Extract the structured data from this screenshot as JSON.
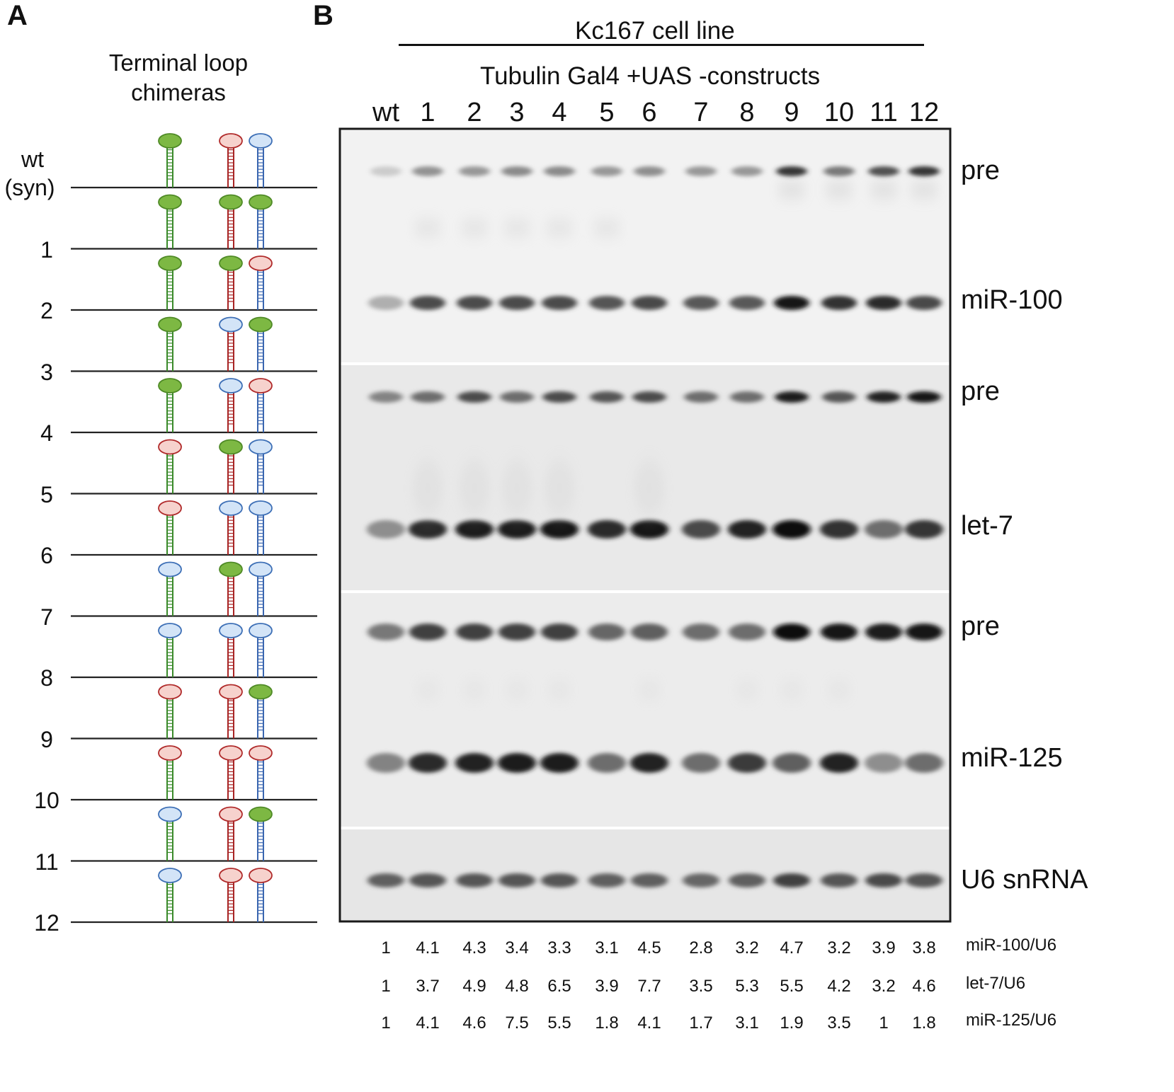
{
  "panels": {
    "a": "A",
    "b": "B"
  },
  "panel_a": {
    "title_line1": "Terminal loop",
    "title_line2": "chimeras",
    "constructs": [
      {
        "label": "wt",
        "label2": "(syn)",
        "loops": [
          "green",
          "red",
          "blue"
        ]
      },
      {
        "label": "1",
        "loops": [
          "green",
          "green",
          "green"
        ]
      },
      {
        "label": "2",
        "loops": [
          "green",
          "green",
          "red"
        ]
      },
      {
        "label": "3",
        "loops": [
          "green",
          "blue",
          "green"
        ]
      },
      {
        "label": "4",
        "loops": [
          "green",
          "blue",
          "red"
        ]
      },
      {
        "label": "5",
        "loops": [
          "red",
          "green",
          "blue"
        ]
      },
      {
        "label": "6",
        "loops": [
          "red",
          "blue",
          "blue"
        ]
      },
      {
        "label": "7",
        "loops": [
          "blue",
          "green",
          "blue"
        ]
      },
      {
        "label": "8",
        "loops": [
          "blue",
          "blue",
          "blue"
        ]
      },
      {
        "label": "9",
        "loops": [
          "red",
          "red",
          "green"
        ]
      },
      {
        "label": "10",
        "loops": [
          "red",
          "red",
          "red"
        ]
      },
      {
        "label": "11",
        "loops": [
          "blue",
          "red",
          "green"
        ]
      },
      {
        "label": "12",
        "loops": [
          "blue",
          "red",
          "red"
        ]
      }
    ],
    "colors": {
      "green": {
        "fill": "#7db843",
        "stroke": "#4f8a26"
      },
      "red": {
        "fill": "#f6d2cd",
        "stroke": "#b02a2a"
      },
      "blue": {
        "fill": "#d3e4f7",
        "stroke": "#3d6fb6"
      },
      "stem_left": "#3a8a2a",
      "stem_mid": "#a82424",
      "stem_right": "#3a66b0"
    }
  },
  "panel_b": {
    "cell_line": "Kc167 cell line",
    "subtitle": "Tubulin Gal4 +UAS -constructs",
    "lanes": [
      "wt",
      "1",
      "2",
      "3",
      "4",
      "5",
      "6",
      "7",
      "8",
      "9",
      "10",
      "11",
      "12"
    ],
    "band_labels": [
      "pre",
      "miR-100",
      "pre",
      "let-7",
      "pre",
      "miR-125",
      "U6 snRNA"
    ],
    "quantification": [
      {
        "name": "miR-100/U6",
        "values": [
          "1",
          "4.1",
          "4.3",
          "3.4",
          "3.3",
          "3.1",
          "4.5",
          "2.8",
          "3.2",
          "4.7",
          "3.2",
          "3.9",
          "3.8"
        ]
      },
      {
        "name": "let-7/U6",
        "values": [
          "1",
          "3.7",
          "4.9",
          "4.8",
          "6.5",
          "3.9",
          "7.7",
          "3.5",
          "5.3",
          "5.5",
          "4.2",
          "3.2",
          "4.6"
        ]
      },
      {
        "name": "miR-125/U6",
        "values": [
          "1",
          "4.1",
          "4.6",
          "7.5",
          "5.5",
          "1.8",
          "4.1",
          "1.7",
          "3.1",
          "1.9",
          "3.5",
          "1",
          "1.8"
        ]
      }
    ],
    "blot_intensity": {
      "pre_100": [
        0.12,
        0.38,
        0.36,
        0.42,
        0.42,
        0.36,
        0.4,
        0.36,
        0.36,
        0.8,
        0.5,
        0.68,
        0.8
      ],
      "mir_100": [
        0.25,
        0.7,
        0.7,
        0.7,
        0.7,
        0.66,
        0.72,
        0.64,
        0.64,
        0.95,
        0.82,
        0.85,
        0.72
      ],
      "pre_let7": [
        0.45,
        0.55,
        0.7,
        0.55,
        0.7,
        0.66,
        0.7,
        0.55,
        0.55,
        0.92,
        0.66,
        0.9,
        0.95
      ],
      "let7": [
        0.4,
        0.85,
        0.92,
        0.92,
        0.96,
        0.85,
        0.96,
        0.72,
        0.88,
        0.98,
        0.82,
        0.55,
        0.8
      ],
      "pre_125": [
        0.5,
        0.75,
        0.75,
        0.75,
        0.75,
        0.58,
        0.62,
        0.55,
        0.55,
        0.98,
        0.95,
        0.92,
        0.95
      ],
      "mir_125": [
        0.45,
        0.85,
        0.88,
        0.92,
        0.92,
        0.55,
        0.9,
        0.55,
        0.78,
        0.62,
        0.9,
        0.4,
        0.55
      ],
      "u6": [
        0.62,
        0.66,
        0.66,
        0.66,
        0.66,
        0.62,
        0.62,
        0.58,
        0.62,
        0.75,
        0.66,
        0.72,
        0.66
      ]
    }
  }
}
